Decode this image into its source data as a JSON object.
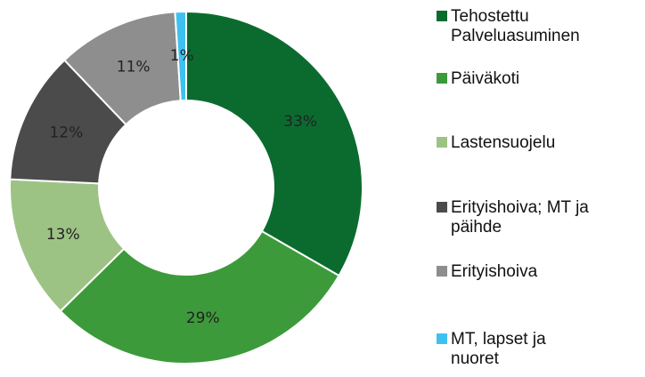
{
  "chart_data": {
    "type": "donut",
    "categories": [
      "Tehostettu Palveluasuminen",
      "Päiväkoti",
      "Lastensuojelu",
      "Erityishoiva; MT ja päihde",
      "Erityishoiva",
      "MT, lapset ja nuoret"
    ],
    "values": [
      33,
      29,
      13,
      12,
      11,
      1
    ],
    "value_labels": [
      "33%",
      "29%",
      "13%",
      "12%",
      "11%",
      "1%"
    ],
    "colors": [
      "#0b6b2f",
      "#3d9a3b",
      "#9dc384",
      "#4b4b4b",
      "#8e8e8e",
      "#3fc1f0"
    ],
    "legend": "right"
  }
}
